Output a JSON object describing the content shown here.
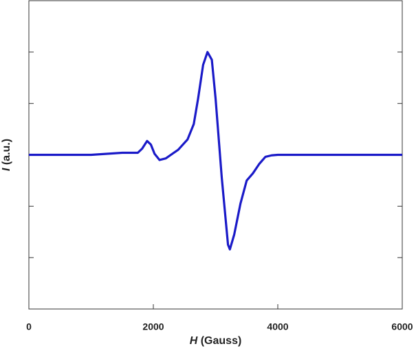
{
  "chart_data": {
    "type": "line",
    "xlabel": {
      "symbol": "H",
      "unit": "(Gauss)"
    },
    "ylabel": {
      "symbol": "I",
      "unit": "(a.u.)"
    },
    "series": [
      {
        "color": "#1a1ac8",
        "x": [
          0,
          1000,
          1500,
          1750,
          1820,
          1900,
          1960,
          2020,
          2100,
          2200,
          2400,
          2550,
          2650,
          2720,
          2800,
          2870,
          2940,
          3000,
          3100,
          3200,
          3230,
          3300,
          3400,
          3500,
          3600,
          3700,
          3800,
          3900,
          4000,
          5000,
          6000
        ],
        "values": [
          0,
          0,
          0.04,
          0.04,
          0.12,
          0.27,
          0.2,
          0.02,
          -0.1,
          -0.07,
          0.1,
          0.3,
          0.6,
          1.1,
          1.75,
          2.0,
          1.85,
          1.1,
          -0.45,
          -1.75,
          -1.84,
          -1.55,
          -0.95,
          -0.5,
          -0.36,
          -0.18,
          -0.04,
          -0.01,
          0,
          0,
          0
        ]
      }
    ],
    "xlim": [
      0,
      6000
    ],
    "xticks": [
      0,
      2000,
      4000,
      6000
    ],
    "ylim": [
      -3,
      3
    ],
    "yticks": [
      -2,
      -1,
      0,
      1,
      2
    ]
  }
}
